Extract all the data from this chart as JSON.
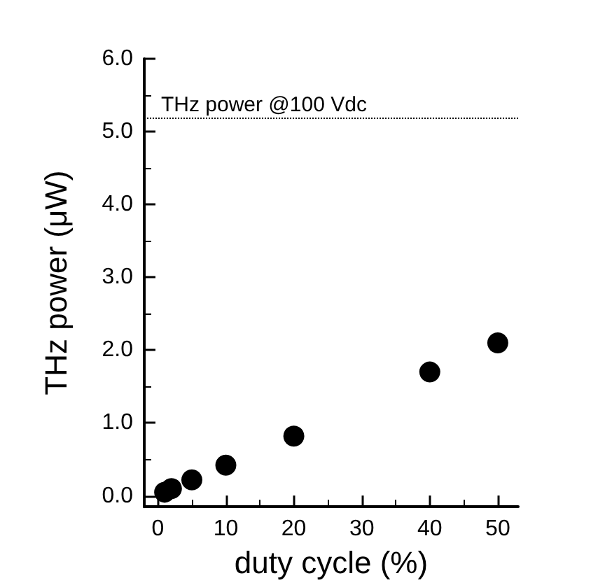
{
  "chart_data": {
    "type": "scatter",
    "xlabel": "duty cycle (%)",
    "ylabel": "THz power (μW)",
    "x": [
      1,
      2,
      5,
      10,
      20,
      40,
      50
    ],
    "series": [
      {
        "color": "#000000",
        "values": [
          0.05,
          0.1,
          0.22,
          0.42,
          0.82,
          1.7,
          2.1
        ]
      }
    ],
    "xlim": [
      -2,
      53
    ],
    "xticks": [
      0,
      10,
      20,
      30,
      40,
      50
    ],
    "ylim": [
      -0.15,
      6
    ],
    "yticks": [
      {
        "value": 0,
        "label": "0.0"
      },
      {
        "value": 1,
        "label": "1.0"
      },
      {
        "value": 2,
        "label": "2.0"
      },
      {
        "value": 3,
        "label": "3.0"
      },
      {
        "value": 4,
        "label": "4.0"
      },
      {
        "value": 5,
        "label": "5.0"
      },
      {
        "value": 6,
        "label": "6.0"
      }
    ],
    "ref_lines": [
      {
        "axis": "y",
        "value": 5.18,
        "label": "THz power @100 Vdc",
        "color": "#000000",
        "line_style": "dotted"
      }
    ],
    "marker": "circle",
    "grid": false
  }
}
